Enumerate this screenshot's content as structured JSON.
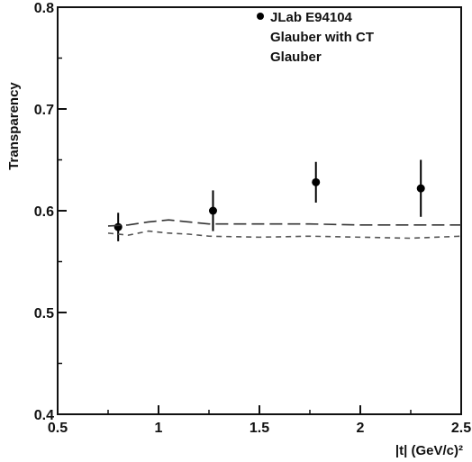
{
  "chart_data": {
    "type": "scatter",
    "title": "",
    "xlabel": "|t| (GeV/c)²",
    "ylabel": "Transparency",
    "xlim": [
      0.5,
      2.5
    ],
    "ylim": [
      0.4,
      0.8
    ],
    "x_ticks": [
      0.5,
      1,
      1.5,
      2,
      2.5
    ],
    "x_tick_labels": [
      "0.5",
      "1",
      "1.5",
      "2",
      "2.5"
    ],
    "y_ticks": [
      0.4,
      0.5,
      0.6,
      0.7,
      0.8
    ],
    "y_tick_labels": [
      "0.4",
      "0.5",
      "0.6",
      "0.7",
      "0.8"
    ],
    "grid": false,
    "legend_position": "top-right",
    "series": [
      {
        "name": "JLab E94104",
        "kind": "points",
        "color": "#000000",
        "x": [
          0.8,
          1.27,
          1.78,
          2.3
        ],
        "y": [
          0.584,
          0.6,
          0.628,
          0.622
        ],
        "yerr": [
          0.014,
          0.02,
          0.02,
          0.028
        ]
      },
      {
        "name": "Glauber with CT",
        "kind": "dashed-line",
        "color": "#333333",
        "x": [
          0.75,
          0.85,
          0.95,
          1.05,
          1.15,
          1.25,
          1.5,
          1.75,
          2.0,
          2.25,
          2.5
        ],
        "y": [
          0.585,
          0.586,
          0.589,
          0.591,
          0.589,
          0.587,
          0.587,
          0.587,
          0.586,
          0.586,
          0.586
        ]
      },
      {
        "name": "Glauber",
        "kind": "dashed-line",
        "color": "#555555",
        "x": [
          0.75,
          0.85,
          0.95,
          1.05,
          1.15,
          1.25,
          1.5,
          1.75,
          2.0,
          2.25,
          2.5
        ],
        "y": [
          0.578,
          0.576,
          0.58,
          0.578,
          0.577,
          0.575,
          0.574,
          0.575,
          0.574,
          0.573,
          0.575
        ]
      }
    ]
  }
}
